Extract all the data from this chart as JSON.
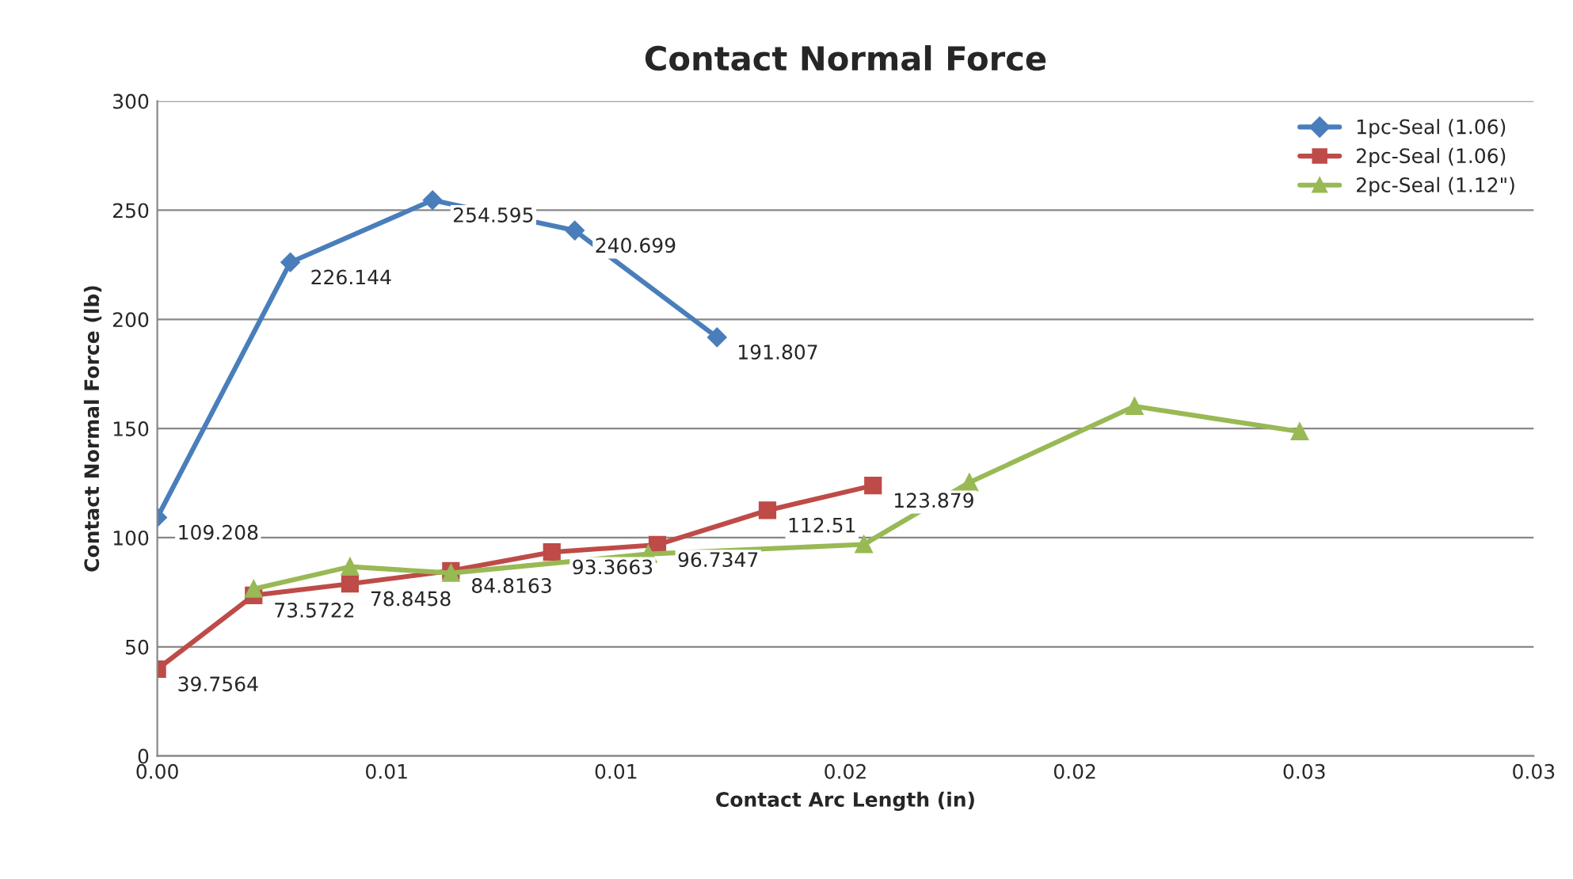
{
  "chart_data": {
    "type": "line",
    "title": "Contact Normal Force",
    "xlabel": "Contact Arc Length (in)",
    "ylabel": "Contact Normal Force (lb)",
    "xlim": [
      0,
      0.03
    ],
    "xticks": [
      {
        "value": 0,
        "label": "0.00"
      },
      {
        "value": 0.005,
        "label": "0.01"
      },
      {
        "value": 0.01,
        "label": "0.01"
      },
      {
        "value": 0.015,
        "label": "0.02"
      },
      {
        "value": 0.02,
        "label": "0.02"
      },
      {
        "value": 0.025,
        "label": "0.03"
      },
      {
        "value": 0.03,
        "label": "0.03"
      }
    ],
    "ylim": [
      0,
      300
    ],
    "yticks": [
      0,
      50,
      100,
      150,
      200,
      250,
      300
    ],
    "grid": "y",
    "legend": "top right",
    "series": [
      {
        "name": "1pc-Seal (1.06)",
        "color": "#4a7ebb",
        "marker": "diamond",
        "x": [
          0,
          0.0029,
          0.006,
          0.0091,
          0.0122
        ],
        "values": [
          109.208,
          226.144,
          254.595,
          240.699,
          191.807
        ],
        "value_labels": [
          "109.208",
          "226.144",
          "254.595",
          "240.699",
          "191.807"
        ]
      },
      {
        "name": "2pc-Seal (1.06)",
        "color": "#be4b48",
        "marker": "square",
        "x": [
          0,
          0.0021,
          0.0042,
          0.0064,
          0.0086,
          0.0109,
          0.0133,
          0.0156
        ],
        "values": [
          39.7564,
          73.5722,
          78.8458,
          84.8163,
          93.3663,
          96.7347,
          112.51,
          123.879
        ],
        "value_labels": [
          "39.7564",
          "73.5722",
          "78.8458",
          "84.8163",
          "93.3663",
          "96.7347",
          "112.51",
          "123.879"
        ]
      },
      {
        "name": "2pc-Seal (1.12\")",
        "color": "#98b954",
        "marker": "triangle",
        "x": [
          0.0021,
          0.0042,
          0.0064,
          0.0107,
          0.0154,
          0.0177,
          0.0213,
          0.0249
        ],
        "values": [
          76.5,
          86.7,
          83.8,
          92.5,
          96.9,
          125.3,
          160.2,
          148.6
        ]
      }
    ]
  }
}
